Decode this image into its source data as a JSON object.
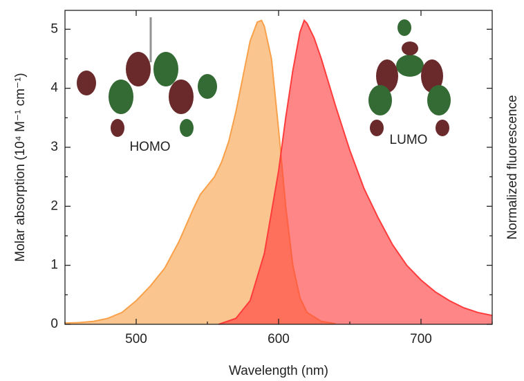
{
  "chart_data": {
    "type": "area",
    "x_label": "Wavelength (nm)",
    "y_label": "Molar absorption (10⁴ M⁻¹ cm⁻¹)",
    "y2_label": "Normalized fluorescence",
    "xlim": [
      450,
      750
    ],
    "xticks": [
      500,
      600,
      700
    ],
    "xminorticks": [
      450,
      550,
      650,
      750
    ],
    "ylim": [
      0,
      5.32
    ],
    "yticks": [
      0,
      1,
      2,
      3,
      4,
      5
    ],
    "yminorticks": [
      0.5,
      1.5,
      2.5,
      3.5,
      4.5
    ],
    "annotations": [
      "HOMO",
      "LUMO"
    ],
    "series": [
      {
        "color": "#f9a14a",
        "x": [
          450,
          460,
          470,
          480,
          490,
          500,
          510,
          520,
          530,
          540,
          545,
          550,
          555,
          560,
          565,
          570,
          575,
          580,
          585,
          588,
          590,
          595,
          600,
          605,
          610,
          615,
          620,
          630,
          640
        ],
        "values": [
          0.02,
          0.03,
          0.05,
          0.1,
          0.2,
          0.4,
          0.65,
          0.95,
          1.4,
          1.95,
          2.2,
          2.35,
          2.5,
          2.75,
          3.1,
          3.6,
          4.2,
          4.8,
          5.12,
          5.15,
          5.05,
          4.5,
          3.3,
          2.0,
          1.0,
          0.45,
          0.2,
          0.05,
          0.01
        ]
      },
      {
        "color": "#ff3b3b",
        "x": [
          558,
          570,
          580,
          590,
          600,
          605,
          610,
          615,
          618,
          620,
          625,
          630,
          640,
          650,
          660,
          670,
          680,
          690,
          700,
          710,
          720,
          730,
          740,
          750
        ],
        "values": [
          0,
          0.1,
          0.4,
          1.2,
          2.6,
          3.5,
          4.3,
          4.95,
          5.15,
          5.1,
          4.85,
          4.5,
          3.7,
          2.95,
          2.3,
          1.8,
          1.35,
          1.0,
          0.75,
          0.55,
          0.4,
          0.28,
          0.2,
          0.15
        ]
      }
    ]
  }
}
